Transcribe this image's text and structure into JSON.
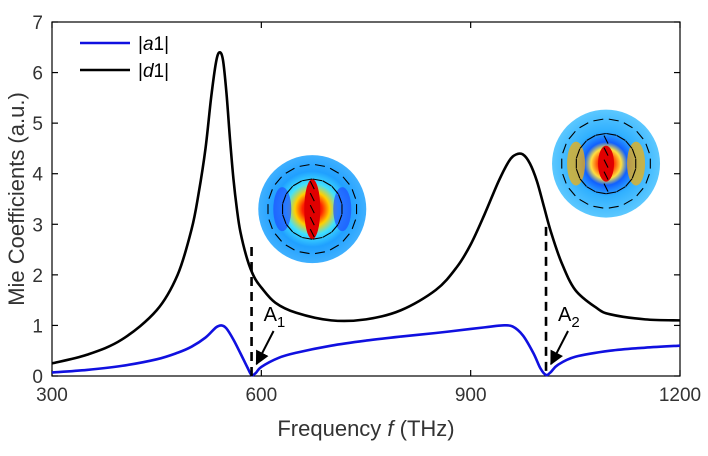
{
  "chart_data": {
    "type": "line",
    "xlabel_prefix": "Frequency ",
    "xlabel_var": "f",
    "xlabel_suffix": " (THz)",
    "ylabel": "Mie Coefficients (a.u.)",
    "xlim": [
      300,
      1200
    ],
    "ylim": [
      0,
      7
    ],
    "xticks": [
      300,
      600,
      900,
      1200
    ],
    "yticks": [
      0,
      1,
      2,
      3,
      4,
      5,
      6,
      7
    ],
    "grid": false,
    "legend_position": "top-left",
    "series": [
      {
        "name": "|a1|",
        "name_parts": [
          "|",
          "a",
          "1|"
        ],
        "color": "#1010e0",
        "x": [
          300,
          350,
          400,
          450,
          480,
          500,
          520,
          535,
          543,
          550,
          560,
          570,
          580,
          586,
          592,
          600,
          625,
          650,
          700,
          750,
          800,
          850,
          900,
          925,
          945,
          960,
          975,
          990,
          1000,
          1008,
          1015,
          1025,
          1050,
          1100,
          1150,
          1200
        ],
        "values": [
          0.07,
          0.12,
          0.2,
          0.33,
          0.46,
          0.58,
          0.76,
          0.96,
          1.0,
          0.94,
          0.72,
          0.45,
          0.17,
          0.02,
          0.06,
          0.18,
          0.36,
          0.46,
          0.6,
          0.7,
          0.78,
          0.85,
          0.93,
          0.97,
          1.0,
          0.98,
          0.8,
          0.45,
          0.15,
          0.02,
          0.08,
          0.22,
          0.38,
          0.5,
          0.56,
          0.6
        ]
      },
      {
        "name": "|d1|",
        "name_parts": [
          "|",
          "d",
          "1|"
        ],
        "color": "#000000",
        "x": [
          300,
          350,
          400,
          450,
          480,
          500,
          510,
          520,
          528,
          535,
          540,
          545,
          550,
          555,
          560,
          565,
          570,
          580,
          590,
          600,
          620,
          650,
          700,
          750,
          800,
          850,
          880,
          900,
          920,
          940,
          955,
          965,
          975,
          985,
          995,
          1005,
          1015,
          1030,
          1050,
          1080,
          1100,
          1150,
          1200
        ],
        "values": [
          0.25,
          0.42,
          0.72,
          1.3,
          2.0,
          2.9,
          3.6,
          4.5,
          5.5,
          6.2,
          6.4,
          6.25,
          5.6,
          4.7,
          3.9,
          3.3,
          2.85,
          2.3,
          1.95,
          1.75,
          1.45,
          1.25,
          1.1,
          1.12,
          1.3,
          1.7,
          2.15,
          2.6,
          3.2,
          3.85,
          4.25,
          4.38,
          4.38,
          4.2,
          3.85,
          3.35,
          2.85,
          2.25,
          1.7,
          1.35,
          1.22,
          1.12,
          1.1
        ]
      }
    ],
    "annotations": [
      {
        "label_main": "A",
        "label_sub": "1",
        "x": 586,
        "y_top": 2.55
      },
      {
        "label_main": "A",
        "label_sub": "2",
        "x": 1008,
        "y_top": 2.95
      }
    ],
    "insets": [
      {
        "name": "inset-field-map-mode-1",
        "cx": 673,
        "cy": 3.3
      },
      {
        "name": "inset-field-map-mode-2",
        "cx": 1094,
        "cy": 4.2
      }
    ]
  }
}
